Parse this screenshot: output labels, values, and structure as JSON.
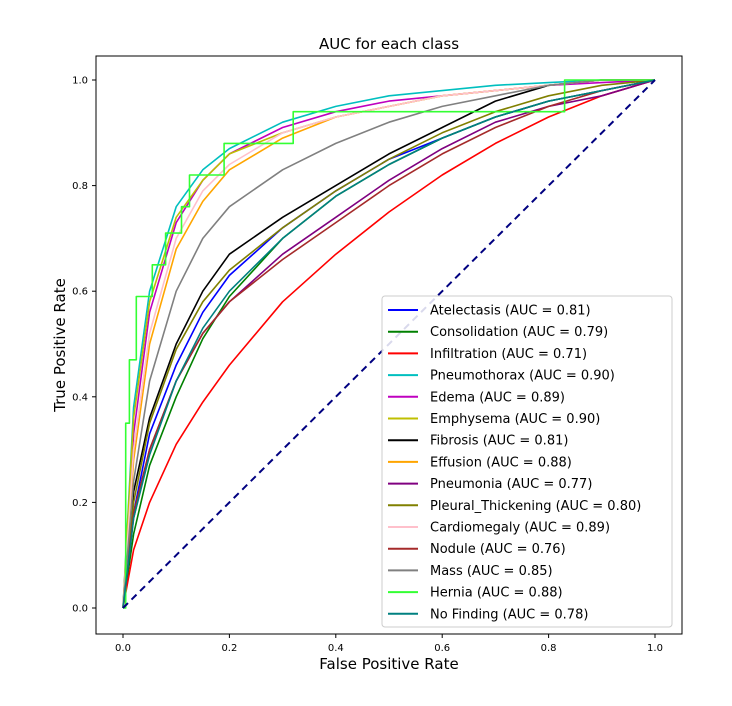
{
  "chart_data": {
    "type": "line",
    "title": "AUC for each class",
    "xlabel": "False Positive Rate",
    "ylabel": "True Positive Rate",
    "xlim": [
      0,
      1
    ],
    "ylim": [
      0,
      1
    ],
    "xticks": [
      "0.0",
      "0.2",
      "0.4",
      "0.6",
      "0.8",
      "1.0"
    ],
    "yticks": [
      "0.0",
      "0.2",
      "0.4",
      "0.6",
      "0.8",
      "1.0"
    ],
    "grid": false,
    "legend_position": "lower-right",
    "diagonal": {
      "x": [
        0,
        1
      ],
      "y": [
        0,
        1
      ],
      "color": "#000080",
      "style": "dashed"
    },
    "series": [
      {
        "name": "Atelectasis (AUC = 0.81)",
        "color": "#0000ff",
        "x": [
          0,
          0.02,
          0.05,
          0.1,
          0.15,
          0.2,
          0.3,
          0.4,
          0.5,
          0.6,
          0.7,
          0.8,
          0.9,
          1.0
        ],
        "y": [
          0,
          0.18,
          0.33,
          0.46,
          0.56,
          0.63,
          0.72,
          0.79,
          0.85,
          0.89,
          0.93,
          0.96,
          0.98,
          1.0
        ]
      },
      {
        "name": "Consolidation (AUC = 0.79)",
        "color": "#008000",
        "x": [
          0,
          0.02,
          0.05,
          0.1,
          0.15,
          0.2,
          0.3,
          0.4,
          0.5,
          0.6,
          0.7,
          0.8,
          0.9,
          1.0
        ],
        "y": [
          0,
          0.14,
          0.27,
          0.4,
          0.51,
          0.59,
          0.7,
          0.78,
          0.84,
          0.89,
          0.93,
          0.96,
          0.98,
          1.0
        ]
      },
      {
        "name": "Infiltration (AUC = 0.71)",
        "color": "#ff0000",
        "x": [
          0,
          0.02,
          0.05,
          0.1,
          0.15,
          0.2,
          0.3,
          0.4,
          0.5,
          0.6,
          0.7,
          0.8,
          0.9,
          1.0
        ],
        "y": [
          0,
          0.11,
          0.2,
          0.31,
          0.39,
          0.46,
          0.58,
          0.67,
          0.75,
          0.82,
          0.88,
          0.93,
          0.97,
          1.0
        ]
      },
      {
        "name": "Pneumothorax (AUC = 0.90)",
        "color": "#00bfbf",
        "x": [
          0,
          0.02,
          0.05,
          0.1,
          0.15,
          0.2,
          0.3,
          0.4,
          0.5,
          0.6,
          0.7,
          0.8,
          0.9,
          1.0
        ],
        "y": [
          0,
          0.38,
          0.6,
          0.76,
          0.83,
          0.87,
          0.92,
          0.95,
          0.97,
          0.98,
          0.99,
          0.995,
          1.0,
          1.0
        ]
      },
      {
        "name": "Edema (AUC = 0.89)",
        "color": "#bf00bf",
        "x": [
          0,
          0.02,
          0.05,
          0.1,
          0.15,
          0.2,
          0.3,
          0.4,
          0.5,
          0.6,
          0.7,
          0.8,
          0.9,
          1.0
        ],
        "y": [
          0,
          0.33,
          0.56,
          0.73,
          0.81,
          0.86,
          0.91,
          0.94,
          0.96,
          0.97,
          0.98,
          0.99,
          0.995,
          1.0
        ]
      },
      {
        "name": "Emphysema (AUC = 0.90)",
        "color": "#bfbf00",
        "x": [
          0,
          0.02,
          0.05,
          0.1,
          0.15,
          0.2,
          0.3,
          0.4,
          0.5,
          0.6,
          0.7,
          0.8,
          0.9,
          1.0
        ],
        "y": [
          0,
          0.36,
          0.58,
          0.74,
          0.81,
          0.86,
          0.9,
          0.93,
          0.95,
          0.97,
          0.98,
          0.99,
          1.0,
          1.0
        ]
      },
      {
        "name": "Fibrosis (AUC = 0.81)",
        "color": "#000000",
        "x": [
          0,
          0.02,
          0.05,
          0.1,
          0.15,
          0.2,
          0.3,
          0.4,
          0.5,
          0.6,
          0.7,
          0.8,
          0.9,
          1.0
        ],
        "y": [
          0,
          0.22,
          0.36,
          0.5,
          0.6,
          0.67,
          0.74,
          0.8,
          0.86,
          0.91,
          0.96,
          0.99,
          1.0,
          1.0
        ]
      },
      {
        "name": "Effusion (AUC = 0.88)",
        "color": "#ffa500",
        "x": [
          0,
          0.02,
          0.05,
          0.1,
          0.15,
          0.2,
          0.3,
          0.4,
          0.5,
          0.6,
          0.7,
          0.8,
          0.9,
          1.0
        ],
        "y": [
          0,
          0.28,
          0.5,
          0.68,
          0.77,
          0.83,
          0.89,
          0.93,
          0.95,
          0.97,
          0.98,
          0.99,
          1.0,
          1.0
        ]
      },
      {
        "name": "Pneumonia (AUC = 0.77)",
        "color": "#800080",
        "x": [
          0,
          0.02,
          0.05,
          0.1,
          0.15,
          0.2,
          0.3,
          0.4,
          0.5,
          0.6,
          0.7,
          0.8,
          0.9,
          1.0
        ],
        "y": [
          0,
          0.17,
          0.3,
          0.43,
          0.52,
          0.58,
          0.67,
          0.74,
          0.81,
          0.87,
          0.92,
          0.95,
          0.97,
          1.0
        ]
      },
      {
        "name": "Pleural_Thickening (AUC = 0.80)",
        "color": "#808000",
        "x": [
          0,
          0.02,
          0.05,
          0.1,
          0.15,
          0.2,
          0.3,
          0.4,
          0.5,
          0.6,
          0.7,
          0.8,
          0.9,
          1.0
        ],
        "y": [
          0,
          0.2,
          0.35,
          0.49,
          0.58,
          0.64,
          0.72,
          0.79,
          0.85,
          0.9,
          0.94,
          0.97,
          0.99,
          1.0
        ]
      },
      {
        "name": "Cardiomegaly (AUC = 0.89)",
        "color": "#ffc0cb",
        "x": [
          0,
          0.02,
          0.05,
          0.1,
          0.15,
          0.2,
          0.3,
          0.4,
          0.5,
          0.6,
          0.7,
          0.8,
          0.9,
          1.0
        ],
        "y": [
          0,
          0.3,
          0.52,
          0.7,
          0.79,
          0.84,
          0.9,
          0.93,
          0.95,
          0.97,
          0.98,
          0.99,
          1.0,
          1.0
        ]
      },
      {
        "name": "Nodule (AUC = 0.76)",
        "color": "#a52a2a",
        "x": [
          0,
          0.02,
          0.05,
          0.1,
          0.15,
          0.2,
          0.3,
          0.4,
          0.5,
          0.6,
          0.7,
          0.8,
          0.9,
          1.0
        ],
        "y": [
          0,
          0.18,
          0.3,
          0.43,
          0.52,
          0.58,
          0.66,
          0.73,
          0.8,
          0.86,
          0.91,
          0.95,
          0.98,
          1.0
        ]
      },
      {
        "name": "Mass (AUC = 0.85)",
        "color": "#808080",
        "x": [
          0,
          0.02,
          0.05,
          0.1,
          0.15,
          0.2,
          0.3,
          0.4,
          0.5,
          0.6,
          0.7,
          0.8,
          0.9,
          1.0
        ],
        "y": [
          0,
          0.24,
          0.43,
          0.6,
          0.7,
          0.76,
          0.83,
          0.88,
          0.92,
          0.95,
          0.97,
          0.99,
          1.0,
          1.0
        ]
      },
      {
        "name": "Hernia (AUC = 0.88)",
        "color": "#33ff33",
        "step": true,
        "x": [
          0,
          0.005,
          0.005,
          0.012,
          0.012,
          0.025,
          0.025,
          0.055,
          0.055,
          0.08,
          0.08,
          0.11,
          0.11,
          0.125,
          0.125,
          0.19,
          0.19,
          0.32,
          0.32,
          0.385,
          0.385,
          0.83,
          0.83,
          1.0
        ],
        "y": [
          0,
          0,
          0.35,
          0.35,
          0.47,
          0.47,
          0.59,
          0.59,
          0.65,
          0.65,
          0.71,
          0.71,
          0.76,
          0.76,
          0.82,
          0.82,
          0.88,
          0.88,
          0.94,
          0.94,
          0.94,
          0.94,
          1.0,
          1.0
        ]
      },
      {
        "name": "No Finding (AUC = 0.78)",
        "color": "#008080",
        "x": [
          0,
          0.02,
          0.05,
          0.1,
          0.15,
          0.2,
          0.3,
          0.4,
          0.5,
          0.6,
          0.7,
          0.8,
          0.9,
          1.0
        ],
        "y": [
          0,
          0.17,
          0.29,
          0.43,
          0.53,
          0.6,
          0.7,
          0.78,
          0.84,
          0.89,
          0.93,
          0.96,
          0.98,
          1.0
        ]
      }
    ]
  }
}
